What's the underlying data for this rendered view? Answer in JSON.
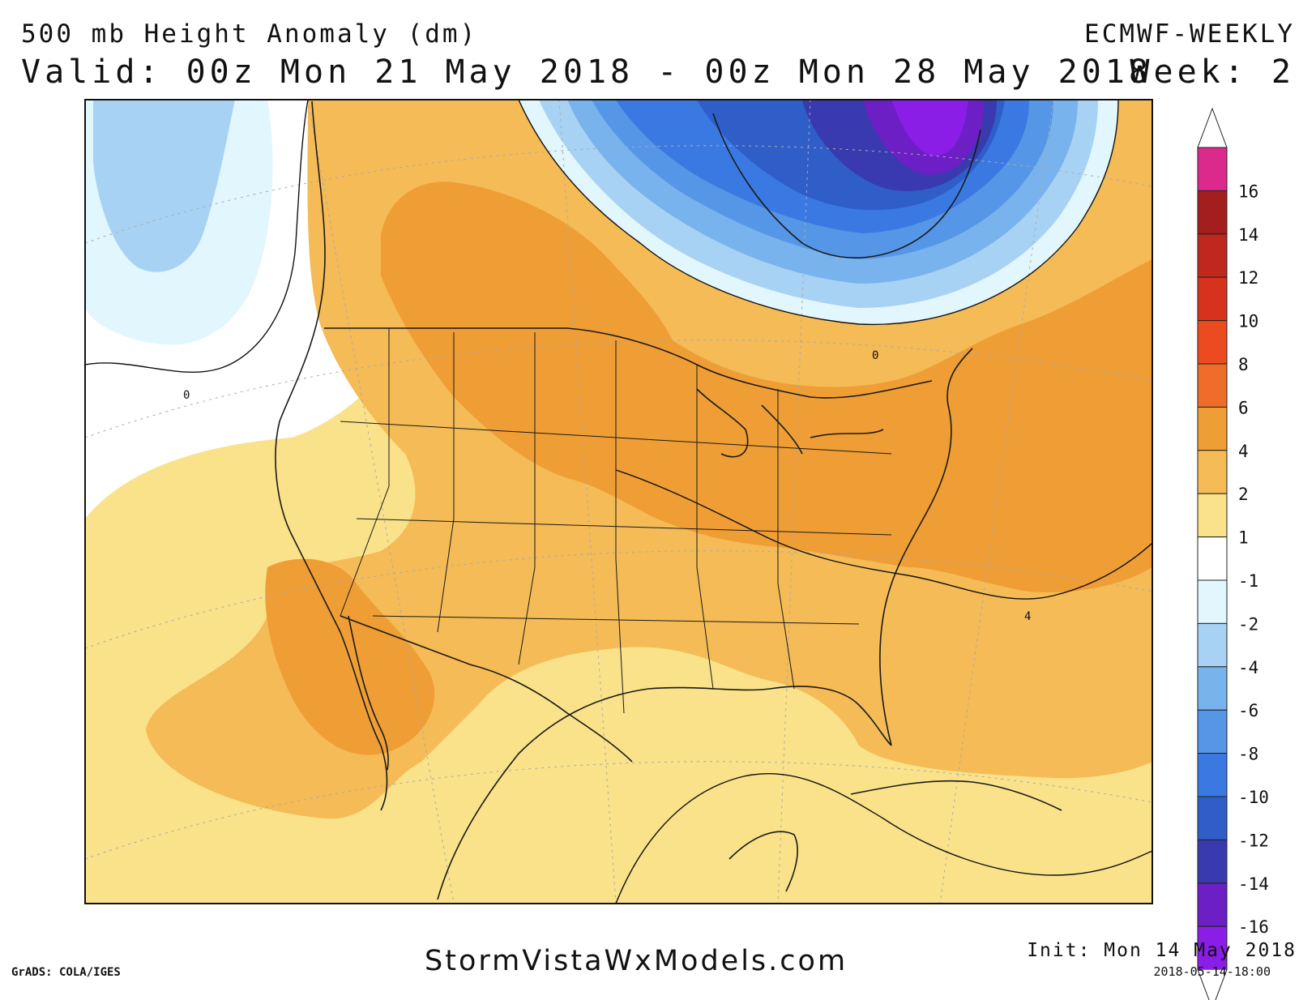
{
  "header": {
    "title": "500 mb Height Anomaly (dm)",
    "valid": "Valid: 00z Mon 21 May 2018 - 00z Mon 28 May 2018",
    "model": "ECMWF-WEEKLY",
    "week": "Week: 2"
  },
  "footer": {
    "source": "StormVistaWxModels.com",
    "grads": "GrADS: COLA/IGES",
    "init": "Init: Mon 14 May 2018",
    "timestamp": "2018-05-14-18:00"
  },
  "map": {
    "contour_labels": [
      "0",
      "0",
      "4"
    ]
  },
  "colorbar": {
    "levels": [
      "16",
      "14",
      "12",
      "10",
      "8",
      "6",
      "4",
      "2",
      "1",
      "-1",
      "-2",
      "-4",
      "-6",
      "-8",
      "-10",
      "-12",
      "-14",
      "-16"
    ],
    "colors": [
      "#dc2a8c",
      "#a51e1e",
      "#c0281e",
      "#d7321e",
      "#ec4a1f",
      "#ef6d28",
      "#ef9d35",
      "#f4bb57",
      "#f9e28a",
      "#ffffff",
      "#e2f6fd",
      "#a8d2f4",
      "#78b3ed",
      "#5596e7",
      "#3b79e2",
      "#2f5ec9",
      "#3a3ab0",
      "#6c1fc4",
      "#8a1ee6"
    ]
  },
  "colors": {
    "land_orange": "#ef9d35",
    "land_light_orange": "#f4bb57",
    "land_yellow": "#f9e28a",
    "negative_blue": "#3b79e2",
    "minimum_purple": "#8a1ee6"
  }
}
